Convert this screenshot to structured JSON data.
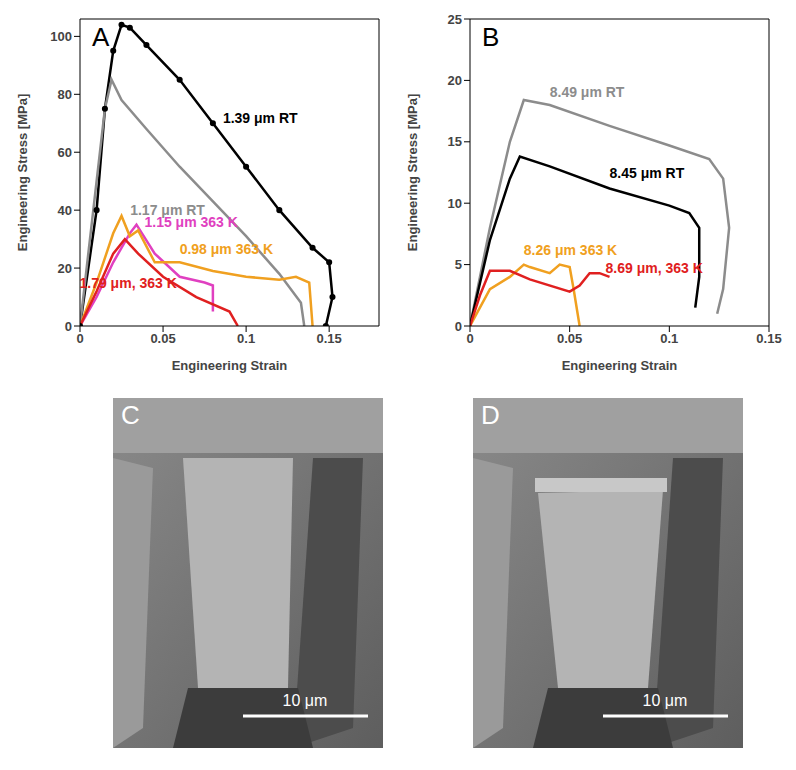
{
  "chart_data": [
    {
      "type": "line",
      "title": "A",
      "x_label": "Engineering Strain",
      "y_label": "Engineering Stress [MPa]",
      "xlim": [
        0,
        0.18
      ],
      "xticks": [
        0,
        0.05,
        0.1,
        0.15
      ],
      "ylim": [
        0,
        106
      ],
      "yticks": [
        0,
        20,
        40,
        60,
        80,
        100
      ],
      "grid": false,
      "series": [
        {
          "name": "1.39 μm RT",
          "color": "#000000",
          "marker": "dot",
          "x": [
            0,
            0.01,
            0.015,
            0.02,
            0.025,
            0.03,
            0.04,
            0.06,
            0.08,
            0.1,
            0.12,
            0.14,
            0.15,
            0.152,
            0.148
          ],
          "values": [
            0,
            40,
            75,
            95,
            104,
            103,
            97,
            85,
            70,
            55,
            40,
            27,
            22,
            10,
            0
          ]
        },
        {
          "name": "1.17 μm RT",
          "color": "#8c8c8c",
          "x": [
            0,
            0.008,
            0.015,
            0.019,
            0.025,
            0.04,
            0.06,
            0.08,
            0.1,
            0.12,
            0.133,
            0.135
          ],
          "values": [
            0,
            40,
            75,
            85,
            78,
            68,
            55,
            43,
            31,
            18,
            8,
            0
          ]
        },
        {
          "name": "1.15 μm 363 K",
          "color": "#e040c0",
          "x": [
            0,
            0.01,
            0.02,
            0.03,
            0.034,
            0.045,
            0.06,
            0.075,
            0.08,
            0.08
          ],
          "values": [
            0,
            10,
            22,
            32,
            35,
            25,
            17,
            15,
            14,
            5
          ]
        },
        {
          "name": "0.98 μm 363 K",
          "color": "#f0a020",
          "x": [
            0,
            0.01,
            0.02,
            0.025,
            0.03,
            0.035,
            0.045,
            0.06,
            0.08,
            0.1,
            0.12,
            0.13,
            0.138,
            0.14
          ],
          "values": [
            0,
            15,
            32,
            38,
            31,
            33,
            22,
            22,
            19,
            17,
            16,
            17,
            15,
            0
          ]
        },
        {
          "name": "1.79 μm, 363 K",
          "color": "#e02020",
          "x": [
            0,
            0.01,
            0.02,
            0.027,
            0.035,
            0.05,
            0.07,
            0.09,
            0.095
          ],
          "values": [
            0,
            12,
            25,
            30,
            25,
            17,
            10,
            5,
            0
          ]
        }
      ]
    },
    {
      "type": "line",
      "title": "B",
      "x_label": "Engineering Strain",
      "y_label": "Engineering Stress [MPa]",
      "xlim": [
        0,
        0.15
      ],
      "xticks": [
        0,
        0.05,
        0.1,
        0.15
      ],
      "ylim": [
        0,
        25
      ],
      "yticks": [
        0,
        5,
        10,
        15,
        20,
        25
      ],
      "grid": false,
      "series": [
        {
          "name": "8.49 μm RT",
          "color": "#8c8c8c",
          "x": [
            0,
            0.01,
            0.02,
            0.027,
            0.04,
            0.07,
            0.1,
            0.12,
            0.127,
            0.13,
            0.127,
            0.124
          ],
          "values": [
            0,
            8,
            15,
            18.4,
            18,
            16.3,
            14.7,
            13.6,
            12,
            8,
            3,
            1
          ]
        },
        {
          "name": "8.45 μm RT",
          "color": "#000000",
          "x": [
            0,
            0.01,
            0.02,
            0.025,
            0.04,
            0.07,
            0.1,
            0.11,
            0.115,
            0.115,
            0.113
          ],
          "values": [
            0,
            7,
            12,
            13.8,
            13,
            11.2,
            9.8,
            9.2,
            8,
            4,
            1.5
          ]
        },
        {
          "name": "8.26 μm 363 K",
          "color": "#f0a020",
          "x": [
            0,
            0.01,
            0.02,
            0.027,
            0.03,
            0.04,
            0.045,
            0.05,
            0.052,
            0.054,
            0.055
          ],
          "values": [
            0,
            3,
            4,
            5,
            4.8,
            4.3,
            5,
            4.8,
            3,
            1,
            0
          ]
        },
        {
          "name": "8.69 μm, 363 K",
          "color": "#e02020",
          "x": [
            0,
            0.005,
            0.01,
            0.02,
            0.03,
            0.05,
            0.055,
            0.06,
            0.065,
            0.07
          ],
          "values": [
            0,
            2.5,
            4.5,
            4.5,
            3.8,
            2.8,
            3.3,
            4.3,
            4.3,
            4
          ]
        }
      ]
    }
  ],
  "images": [
    {
      "label": "C",
      "scale_bar": "10 μm"
    },
    {
      "label": "D",
      "scale_bar": "10 μm"
    }
  ]
}
